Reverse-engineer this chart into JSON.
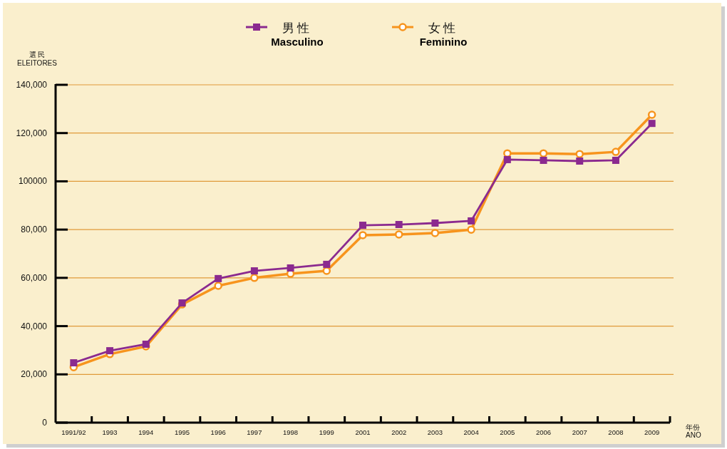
{
  "chart_data": {
    "type": "line",
    "xlabel": "年份\nANO",
    "ylabel": "選 民\nELEITORES",
    "categories": [
      "1991/92",
      "1993",
      "1994",
      "1995",
      "1996",
      "1997",
      "1998",
      "1999",
      "2001",
      "2002",
      "2003",
      "2004",
      "2005",
      "2006",
      "2007",
      "2008",
      "2009"
    ],
    "ylim": [
      0,
      140000
    ],
    "yticks": [
      {
        "value": 0,
        "label": "0"
      },
      {
        "value": 20000,
        "label": "20,000"
      },
      {
        "value": 40000,
        "label": "40,000"
      },
      {
        "value": 60000,
        "label": "60,000"
      },
      {
        "value": 80000,
        "label": "80,000"
      },
      100000,
      {
        "value": 120000,
        "label": "120,000"
      },
      {
        "value": 140000,
        "label": "140,000"
      }
    ],
    "grid": "y",
    "legend": "top",
    "line_style": "solid",
    "series": [
      {
        "name": "男 性\nMasculino",
        "color": "#8b2a8f",
        "marker": "square",
        "values": [
          24800,
          29800,
          32500,
          49600,
          59700,
          62900,
          64100,
          65600,
          81800,
          82100,
          82700,
          83600,
          109000,
          108700,
          108400,
          108700,
          124000
        ]
      },
      {
        "name": "女 性\nFeminino",
        "color": "#f7941d",
        "marker": "circle",
        "values": [
          23000,
          28400,
          31600,
          49000,
          56700,
          60000,
          61700,
          62900,
          77700,
          78000,
          78600,
          80000,
          111600,
          111600,
          111300,
          112200,
          127600
        ]
      }
    ]
  }
}
